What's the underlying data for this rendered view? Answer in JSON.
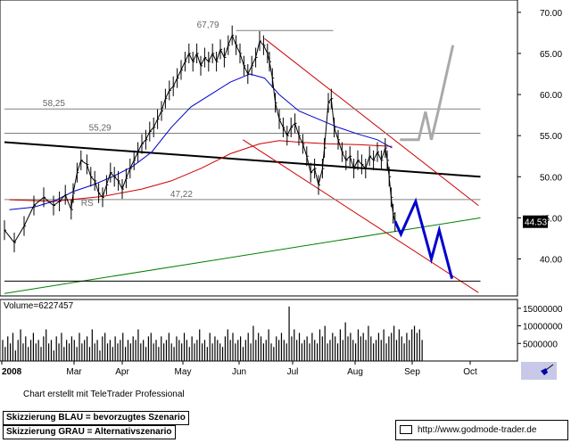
{
  "chart_data": {
    "type": "line",
    "title": "",
    "xlabel": "",
    "ylabel": "",
    "x_months": [
      "2008",
      "Mar",
      "Apr",
      "May",
      "Jun",
      "Jul",
      "Aug",
      "Sep",
      "Oct"
    ],
    "ylim": [
      35.5,
      71.5
    ],
    "yticks": [
      "70.00",
      "65.00",
      "60.00",
      "55.00",
      "50.00",
      "45.00",
      "40.00"
    ],
    "grid": false,
    "price_series": {
      "name": "",
      "color": "#000000",
      "points": [
        [
          0.0,
          43.5
        ],
        [
          1.0,
          42.0
        ],
        [
          2.0,
          44.0
        ],
        [
          3.0,
          46.5
        ],
        [
          4.0,
          47.5
        ],
        [
          5.0,
          46.5
        ],
        [
          5.6,
          47.0
        ],
        [
          6.2,
          47.8
        ],
        [
          6.8,
          46.0
        ],
        [
          7.0,
          48.0
        ],
        [
          7.4,
          50.5
        ],
        [
          7.8,
          52.0
        ],
        [
          8.4,
          51.5
        ],
        [
          8.8,
          50.0
        ],
        [
          9.2,
          49.5
        ],
        [
          9.6,
          48.0
        ],
        [
          10.0,
          47.5
        ],
        [
          10.4,
          49.0
        ],
        [
          10.8,
          50.5
        ],
        [
          11.2,
          50.0
        ],
        [
          11.6,
          49.5
        ],
        [
          12.0,
          48.5
        ],
        [
          12.4,
          49.8
        ],
        [
          12.8,
          51.0
        ],
        [
          13.2,
          52.0
        ],
        [
          13.6,
          53.0
        ],
        [
          14.0,
          54.0
        ],
        [
          14.4,
          54.5
        ],
        [
          14.8,
          55.5
        ],
        [
          15.2,
          56.0
        ],
        [
          15.6,
          57.0
        ],
        [
          16.0,
          58.0
        ],
        [
          16.4,
          59.5
        ],
        [
          16.8,
          60.5
        ],
        [
          17.2,
          61.0
        ],
        [
          17.6,
          62.0
        ],
        [
          18.0,
          63.0
        ],
        [
          18.4,
          64.0
        ],
        [
          18.8,
          65.0
        ],
        [
          19.2,
          64.0
        ],
        [
          19.6,
          65.0
        ],
        [
          20.0,
          63.5
        ],
        [
          20.4,
          64.5
        ],
        [
          20.8,
          64.0
        ],
        [
          21.2,
          65.0
        ],
        [
          21.6,
          64.0
        ],
        [
          22.0,
          65.5
        ],
        [
          22.4,
          64.5
        ],
        [
          22.8,
          66.0
        ],
        [
          23.2,
          67.2
        ],
        [
          23.6,
          66.0
        ],
        [
          24.0,
          65.0
        ],
        [
          24.4,
          63.5
        ],
        [
          24.8,
          62.5
        ],
        [
          25.2,
          63.5
        ],
        [
          25.6,
          64.5
        ],
        [
          26.0,
          66.5
        ],
        [
          26.4,
          66.0
        ],
        [
          26.8,
          65.0
        ],
        [
          27.0,
          64.0
        ],
        [
          27.3,
          62.0
        ],
        [
          27.6,
          59.0
        ],
        [
          28.0,
          57.0
        ],
        [
          28.4,
          56.0
        ],
        [
          28.8,
          55.0
        ],
        [
          29.2,
          56.0
        ],
        [
          29.6,
          56.5
        ],
        [
          30.0,
          55.0
        ],
        [
          30.4,
          54.0
        ],
        [
          30.8,
          52.5
        ],
        [
          31.2,
          50.5
        ],
        [
          31.6,
          51.0
        ],
        [
          32.0,
          49.0
        ],
        [
          32.4,
          51.0
        ],
        [
          32.6,
          53.5
        ],
        [
          33.0,
          59.0
        ],
        [
          33.3,
          59.5
        ],
        [
          33.6,
          56.0
        ],
        [
          34.0,
          54.5
        ],
        [
          34.4,
          53.0
        ],
        [
          34.8,
          52.0
        ],
        [
          35.2,
          52.5
        ],
        [
          35.6,
          51.0
        ],
        [
          36.0,
          52.0
        ],
        [
          36.4,
          51.5
        ],
        [
          36.8,
          51.0
        ],
        [
          37.2,
          52.5
        ],
        [
          37.6,
          52.0
        ],
        [
          38.0,
          53.0
        ],
        [
          38.4,
          52.0
        ],
        [
          38.8,
          53.5
        ],
        [
          39.0,
          52.0
        ],
        [
          39.2,
          50.0
        ],
        [
          39.4,
          47.5
        ],
        [
          39.6,
          45.5
        ],
        [
          39.8,
          44.5
        ]
      ]
    },
    "ma_blue": {
      "color": "#0000cc",
      "points": [
        [
          0.5,
          46.0
        ],
        [
          3.0,
          46.3
        ],
        [
          5.0,
          47.0
        ],
        [
          7.0,
          48.2
        ],
        [
          9.0,
          49.0
        ],
        [
          11.0,
          50.0
        ],
        [
          13.0,
          51.2
        ],
        [
          15.0,
          53.0
        ],
        [
          17.0,
          56.0
        ],
        [
          19.0,
          58.5
        ],
        [
          21.0,
          60.0
        ],
        [
          23.0,
          61.5
        ],
        [
          25.0,
          62.5
        ],
        [
          26.5,
          62.0
        ],
        [
          28.0,
          60.0
        ],
        [
          30.0,
          58.0
        ],
        [
          32.0,
          57.0
        ],
        [
          34.0,
          56.0
        ],
        [
          36.0,
          55.2
        ],
        [
          38.0,
          54.5
        ],
        [
          39.5,
          53.5
        ]
      ]
    },
    "ma_red": {
      "color": "#cc0000",
      "points": [
        [
          0.5,
          47.2
        ],
        [
          5.0,
          47.0
        ],
        [
          10.0,
          47.6
        ],
        [
          14.0,
          48.5
        ],
        [
          17.0,
          49.5
        ],
        [
          20.0,
          51.0
        ],
        [
          23.0,
          52.8
        ],
        [
          26.0,
          54.0
        ],
        [
          28.0,
          54.4
        ],
        [
          30.0,
          54.2
        ],
        [
          33.0,
          54.0
        ],
        [
          36.0,
          53.9
        ],
        [
          39.5,
          53.7
        ]
      ]
    },
    "trendlines": [
      {
        "kind": "black",
        "color": "#000000",
        "points": [
          [
            0.0,
            54.2
          ],
          [
            48.5,
            50.0
          ]
        ]
      },
      {
        "kind": "green",
        "color": "#008000",
        "points": [
          [
            0.0,
            35.8
          ],
          [
            48.5,
            45.0
          ]
        ]
      },
      {
        "kind": "channel-upper",
        "color": "#cc0000",
        "points": [
          [
            26.5,
            66.8
          ],
          [
            48.3,
            46.5
          ]
        ]
      },
      {
        "kind": "channel-lower",
        "color": "#cc0000",
        "points": [
          [
            24.3,
            54.5
          ],
          [
            48.3,
            35.9
          ]
        ]
      },
      {
        "kind": "hline-67.79",
        "color": "#808080",
        "points": [
          [
            23.6,
            67.79
          ],
          [
            33.5,
            67.79
          ]
        ]
      },
      {
        "kind": "hline-58.25",
        "color": "#808080",
        "points": [
          [
            0.0,
            58.25
          ],
          [
            48.5,
            58.25
          ]
        ]
      },
      {
        "kind": "hline-55.29",
        "color": "#808080",
        "points": [
          [
            0.0,
            55.29
          ],
          [
            48.5,
            55.29
          ]
        ]
      },
      {
        "kind": "hline-47.22",
        "color": "#808080",
        "points": [
          [
            0.0,
            47.22
          ],
          [
            48.5,
            47.22
          ]
        ]
      },
      {
        "kind": "hline-37.3",
        "color": "#000000",
        "points": [
          [
            0.0,
            37.3
          ],
          [
            48.5,
            37.3
          ]
        ]
      }
    ],
    "scenario_blue": {
      "color": "#0000cc",
      "points": [
        [
          39.8,
          44.6
        ],
        [
          40.4,
          43.0
        ],
        [
          41.9,
          47.0
        ],
        [
          43.5,
          40.0
        ],
        [
          44.3,
          43.5
        ],
        [
          45.6,
          37.6
        ]
      ]
    },
    "scenario_gray": {
      "color": "#aaaaaa",
      "points": [
        [
          40.3,
          54.5
        ],
        [
          42.2,
          54.5
        ],
        [
          42.9,
          57.9
        ],
        [
          43.5,
          54.5
        ],
        [
          44.2,
          58.0
        ],
        [
          45.7,
          66.0
        ]
      ]
    },
    "annotations": [
      {
        "text": "67,79",
        "at": [
          19.6,
          67.79
        ]
      },
      {
        "text": "58,25",
        "at": [
          3.9,
          58.25
        ]
      },
      {
        "text": "55,29",
        "at": [
          8.6,
          55.29
        ]
      },
      {
        "text": "47,22",
        "at": [
          16.9,
          47.22
        ]
      },
      {
        "text": "RS",
        "at": [
          7.8,
          46.1
        ]
      }
    ],
    "current_price_label": "44.53",
    "current_price": 44.53,
    "volume": {
      "title": "Volume=6227457",
      "yticks": [
        "15000000",
        "10000000",
        "5000000"
      ],
      "ylim": [
        0,
        17500000
      ],
      "values": [
        6,
        4,
        7,
        5,
        8,
        3,
        6,
        9,
        5,
        7,
        4,
        6,
        8,
        5,
        6,
        4,
        7,
        9,
        5,
        6,
        3,
        7,
        5,
        8,
        4,
        6,
        5,
        7,
        6,
        4,
        8,
        5,
        6,
        7,
        4,
        9,
        5,
        6,
        3,
        7,
        8,
        5,
        6,
        4,
        7,
        5,
        6,
        8,
        4,
        6,
        5,
        7,
        6,
        9,
        5,
        6,
        4,
        7,
        8,
        5,
        6,
        4,
        7,
        5,
        6,
        8,
        5,
        4,
        7,
        6,
        5,
        8,
        6,
        4,
        7,
        5,
        6,
        9,
        5,
        6,
        4,
        8,
        5,
        7,
        6,
        5,
        4,
        7,
        9,
        6,
        8,
        5,
        6,
        7,
        4,
        6,
        8,
        5,
        10,
        6,
        8,
        7,
        5,
        6,
        9,
        5,
        4,
        7,
        6,
        8,
        6,
        5,
        15.5,
        7,
        9,
        6,
        8,
        5,
        6,
        7,
        5,
        8,
        6,
        5,
        9,
        7,
        10,
        5,
        6,
        8,
        7,
        5,
        9,
        6,
        11,
        7,
        8,
        6,
        5,
        9,
        7,
        8,
        6,
        10,
        7,
        5,
        6,
        8,
        6,
        9,
        5,
        7,
        8,
        10,
        6,
        9,
        7,
        5,
        8,
        6,
        9,
        10,
        8,
        9,
        6
      ],
      "color": "#000000"
    }
  },
  "credit_text": "Chart erstellt mit TeleTrader Professional",
  "legend_blue": "Skizzierung BLAU = bevorzugtes Szenario",
  "legend_gray": "Skizzierung GRAU = Alternativszenario",
  "website": "http://www.godmode-trader.de",
  "icon_names": [
    "mail-icon",
    "tool-icon"
  ]
}
